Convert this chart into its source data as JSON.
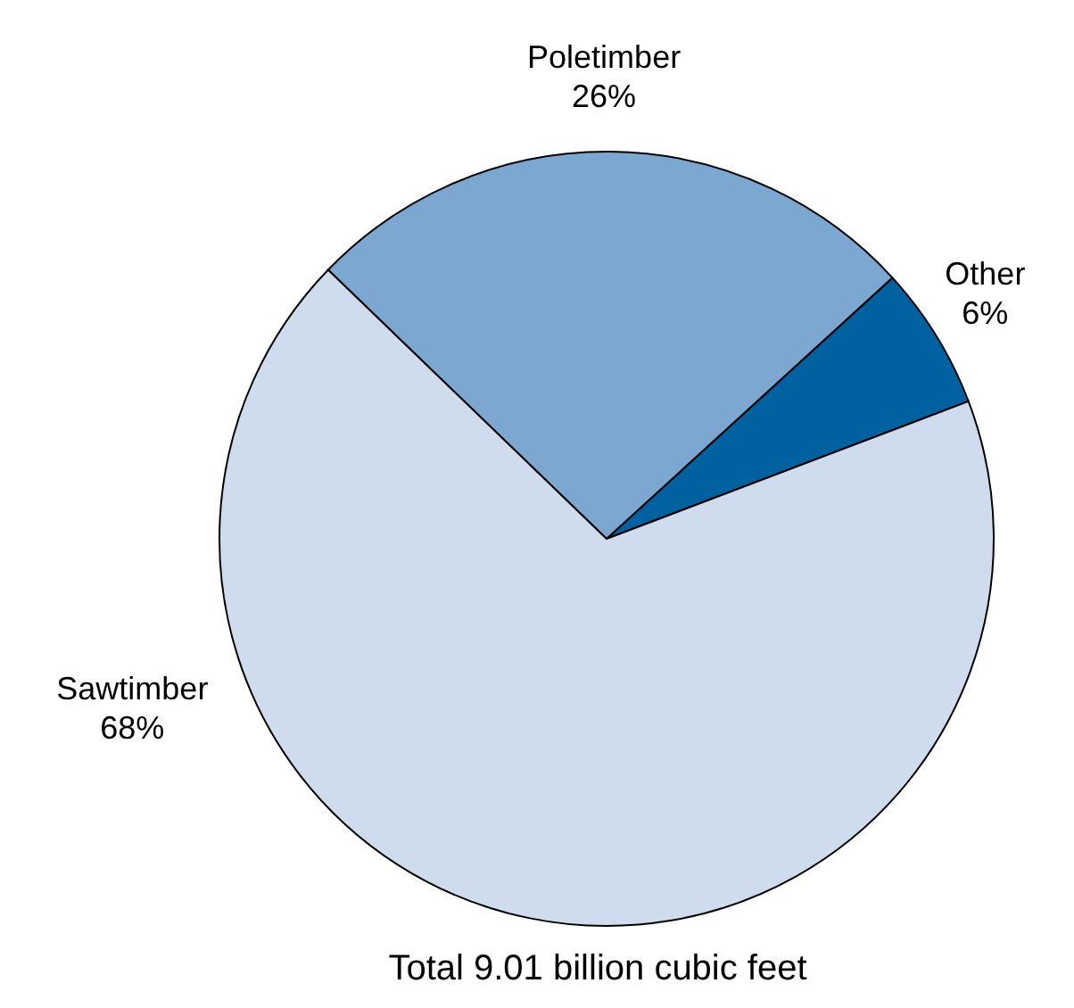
{
  "chart_data": {
    "type": "pie",
    "title": "Total 9.01 billion cubic feet",
    "categories": [
      "Other",
      "Poletimber",
      "Sawtimber"
    ],
    "values": [
      6,
      26,
      68
    ],
    "value_labels": [
      "6%",
      "26%",
      "68%"
    ],
    "colors": [
      "#0061a1",
      "#7ba7d0",
      "#cfdcee"
    ],
    "legend": false
  }
}
